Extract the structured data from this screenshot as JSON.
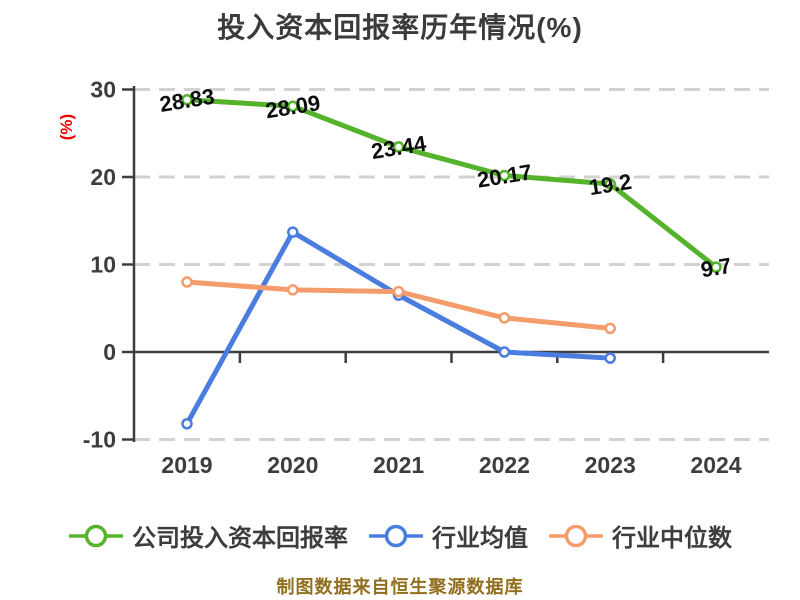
{
  "title": "投入资本回报率历年情况(%)",
  "footer": {
    "text": "制图数据来自恒生聚源数据库",
    "color": "#916f1f"
  },
  "chart_data": {
    "type": "line",
    "title": "投入资本回报率历年情况(%)",
    "ylabel": "(%)",
    "ylabel_color": "#ee0000",
    "categories": [
      "2019",
      "2020",
      "2021",
      "2022",
      "2023",
      "2024"
    ],
    "yticks": [
      30,
      20,
      10,
      0,
      -10
    ],
    "ylim": [
      -10,
      30
    ],
    "grid": "horizontal-dashed",
    "grid_color": "#d2d2d2",
    "axis_color": "#3d3d3d",
    "tick_label_color": "#3d3d3d",
    "legend_position": "bottom",
    "series": [
      {
        "name": "公司投入资本回报率",
        "color": "#54b32a",
        "values": [
          28.83,
          28.09,
          23.44,
          20.17,
          19.2,
          9.7
        ],
        "labels": [
          "28.83",
          "28.09",
          "23.44",
          "20.17",
          "19.2",
          "9.7"
        ],
        "show_labels": true
      },
      {
        "name": "行业均值",
        "color": "#4a7de0",
        "values": [
          -8.2,
          13.7,
          6.5,
          0,
          -0.7,
          null
        ],
        "labels": [],
        "show_labels": false
      },
      {
        "name": "行业中位数",
        "color": "#f59c6c",
        "values": [
          8,
          7.1,
          6.9,
          3.9,
          2.7,
          null
        ],
        "labels": [],
        "show_labels": false
      }
    ]
  }
}
